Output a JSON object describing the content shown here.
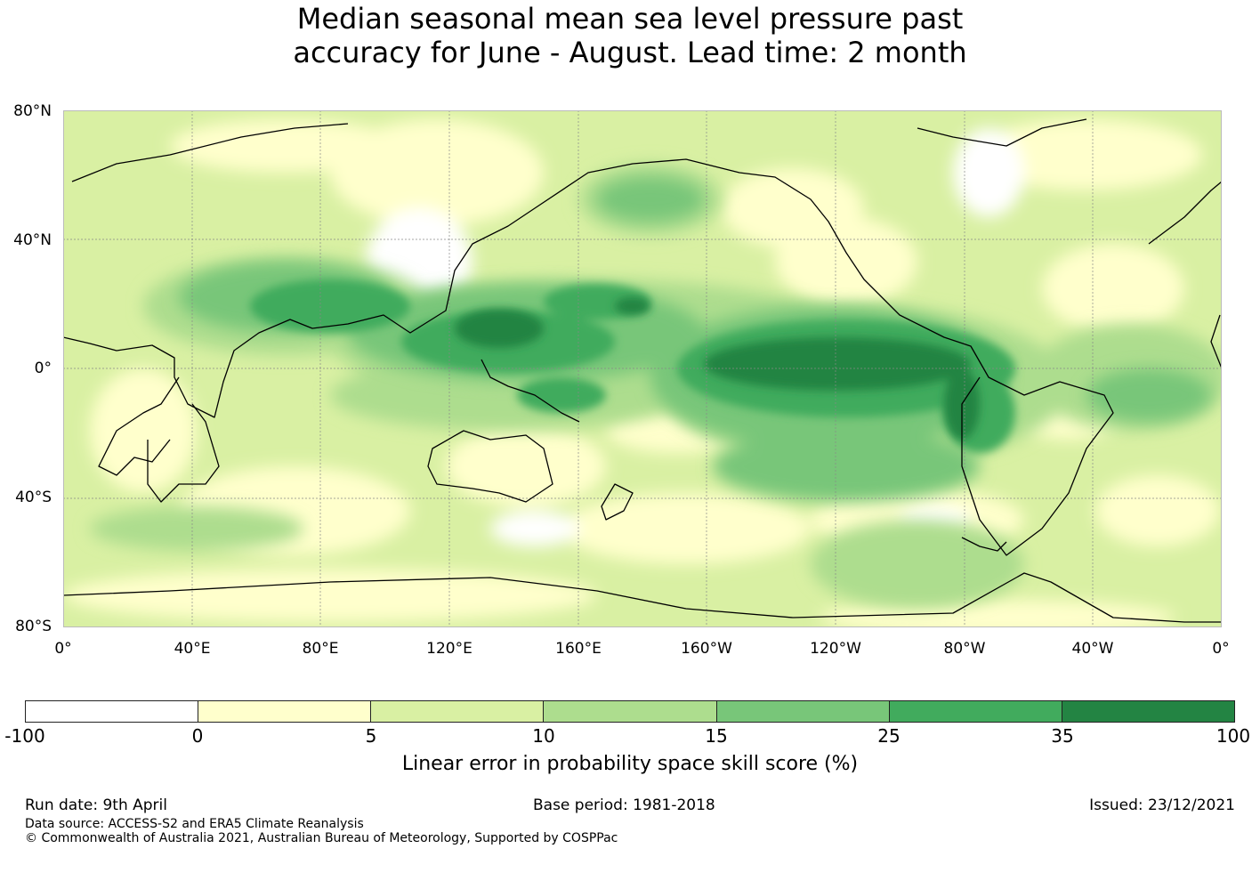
{
  "title": {
    "line1": "Median seasonal mean sea level pressure past",
    "line2": "accuracy for June - August. Lead time: 2 month"
  },
  "map": {
    "projection": "equirectangular, 0° centred on left edge, Pacific-centred",
    "lat_labels": [
      "80°N",
      "40°N",
      "0°",
      "40°S",
      "80°S"
    ],
    "lon_labels": [
      "0°",
      "40°E",
      "80°E",
      "120°E",
      "160°E",
      "160°W",
      "120°W",
      "80°W",
      "40°W",
      "0°"
    ]
  },
  "colorbar": {
    "ticks": [
      "-100",
      "0",
      "5",
      "10",
      "15",
      "25",
      "35",
      "100"
    ],
    "colors": [
      "#ffffff",
      "#ffffcc",
      "#d9f0a3",
      "#addd8e",
      "#78c679",
      "#41ab5d",
      "#238443"
    ],
    "label": "Linear error in probability space skill score (%)"
  },
  "footer": {
    "run_date": "Run date: 9th April",
    "base_period": "Base period: 1981-2018",
    "issued": "Issued: 23/12/2021",
    "data_source": "Data source: ACCESS-S2 and ERA5 Climate Reanalysis",
    "copyright": "© Commonwealth of Australia 2021, Australian Bureau of Meteorology, Supported by COSPPac"
  }
}
